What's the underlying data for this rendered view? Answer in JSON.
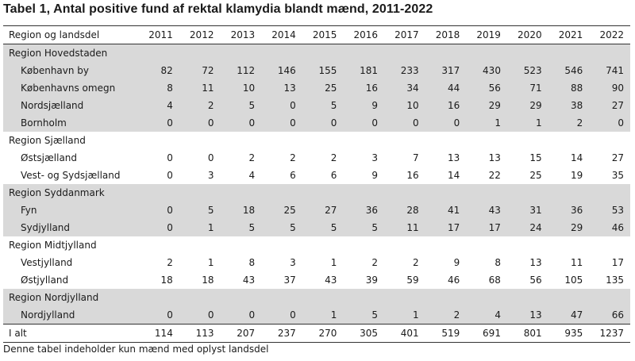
{
  "title": "Tabel 1, Antal positive fund af rektal klamydia blandt mænd, 2011-2022",
  "header": {
    "label": "Region og landsdel",
    "years": [
      "2011",
      "2012",
      "2013",
      "2014",
      "2015",
      "2016",
      "2017",
      "2018",
      "2019",
      "2020",
      "2021",
      "2022"
    ]
  },
  "groups": [
    {
      "region": "Region Hovedstaden",
      "rows": [
        {
          "name": "København by",
          "values": [
            "82",
            "72",
            "112",
            "146",
            "155",
            "181",
            "233",
            "317",
            "430",
            "523",
            "546",
            "741"
          ]
        },
        {
          "name": "Københavns omegn",
          "values": [
            "8",
            "11",
            "10",
            "13",
            "25",
            "16",
            "34",
            "44",
            "56",
            "71",
            "88",
            "90"
          ]
        },
        {
          "name": "Nordsjælland",
          "values": [
            "4",
            "2",
            "5",
            "0",
            "5",
            "9",
            "10",
            "16",
            "29",
            "29",
            "38",
            "27"
          ]
        },
        {
          "name": "Bornholm",
          "values": [
            "0",
            "0",
            "0",
            "0",
            "0",
            "0",
            "0",
            "0",
            "1",
            "1",
            "2",
            "0"
          ]
        }
      ]
    },
    {
      "region": "Region Sjælland",
      "rows": [
        {
          "name": "Østsjælland",
          "values": [
            "0",
            "0",
            "2",
            "2",
            "2",
            "3",
            "7",
            "13",
            "13",
            "15",
            "14",
            "27"
          ]
        },
        {
          "name": "Vest- og Sydsjælland",
          "values": [
            "0",
            "3",
            "4",
            "6",
            "6",
            "9",
            "16",
            "14",
            "22",
            "25",
            "19",
            "35"
          ]
        }
      ]
    },
    {
      "region": "Region Syddanmark",
      "rows": [
        {
          "name": "Fyn",
          "values": [
            "0",
            "5",
            "18",
            "25",
            "27",
            "36",
            "28",
            "41",
            "43",
            "31",
            "36",
            "53"
          ]
        },
        {
          "name": "Sydjylland",
          "values": [
            "0",
            "1",
            "5",
            "5",
            "5",
            "5",
            "11",
            "17",
            "17",
            "24",
            "29",
            "46"
          ]
        }
      ]
    },
    {
      "region": "Region Midtjylland",
      "rows": [
        {
          "name": "Vestjylland",
          "values": [
            "2",
            "1",
            "8",
            "3",
            "1",
            "2",
            "2",
            "9",
            "8",
            "13",
            "11",
            "17"
          ]
        },
        {
          "name": "Østjylland",
          "values": [
            "18",
            "18",
            "43",
            "37",
            "43",
            "39",
            "59",
            "46",
            "68",
            "56",
            "105",
            "135"
          ]
        }
      ]
    },
    {
      "region": "Region Nordjylland",
      "rows": [
        {
          "name": "Nordjylland",
          "values": [
            "0",
            "0",
            "0",
            "0",
            "1",
            "5",
            "1",
            "2",
            "4",
            "13",
            "47",
            "66"
          ]
        }
      ]
    }
  ],
  "total": {
    "name": "I alt",
    "values": [
      "114",
      "113",
      "207",
      "237",
      "270",
      "305",
      "401",
      "519",
      "691",
      "801",
      "935",
      "1237"
    ]
  },
  "footnote": "Denne tabel indeholder kun mænd med oplyst landsdel"
}
